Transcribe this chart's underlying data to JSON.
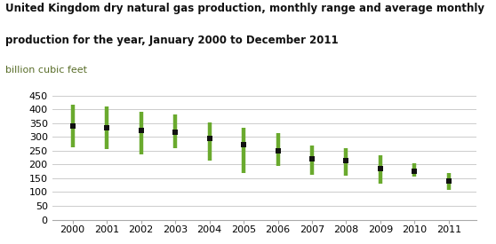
{
  "title_line1": "United Kingdom dry natural gas production, monthly range and average monthly",
  "title_line2": "production for the year, January 2000 to December 2011",
  "subtitle": "billion cubic feet",
  "years": [
    2000,
    2001,
    2002,
    2003,
    2004,
    2005,
    2006,
    2007,
    2008,
    2009,
    2010,
    2011
  ],
  "avg": [
    340,
    332,
    323,
    317,
    295,
    271,
    249,
    221,
    213,
    185,
    176,
    140
  ],
  "low": [
    262,
    255,
    238,
    258,
    215,
    168,
    195,
    163,
    160,
    130,
    155,
    108
  ],
  "high": [
    418,
    411,
    390,
    382,
    352,
    332,
    315,
    268,
    258,
    233,
    205,
    168
  ],
  "bar_color": "#6aaa2e",
  "marker_color": "#111111",
  "bg_color": "#ffffff",
  "grid_color": "#cccccc",
  "ylim": [
    0,
    460
  ],
  "yticks": [
    0,
    50,
    100,
    150,
    200,
    250,
    300,
    350,
    400,
    450
  ],
  "xlim_left": 1999.4,
  "xlim_right": 2011.8,
  "title_fontsize": 8.5,
  "subtitle_fontsize": 8.0,
  "tick_fontsize": 8.0
}
